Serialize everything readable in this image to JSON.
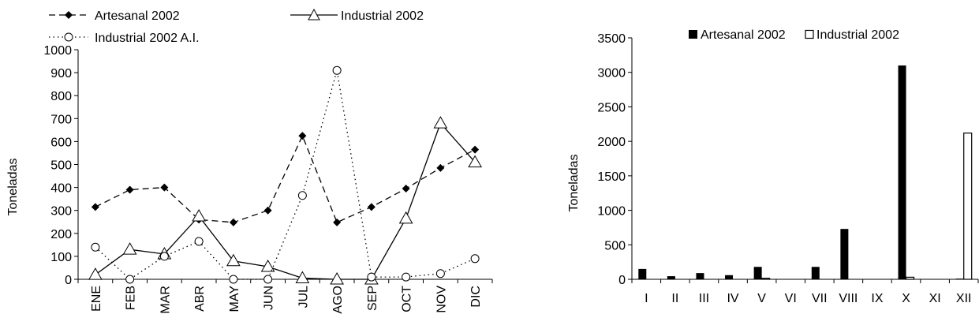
{
  "chart_data": [
    {
      "type": "line",
      "title": "",
      "xlabel": "",
      "ylabel": "Toneladas",
      "ylim": [
        0,
        1000
      ],
      "yticks": [
        0,
        100,
        200,
        300,
        400,
        500,
        600,
        700,
        800,
        900,
        1000
      ],
      "categories": [
        "ENE",
        "FEB",
        "MAR",
        "ABR",
        "MAY",
        "JUN",
        "JUL",
        "AGO",
        "SEP",
        "OCT",
        "NOV",
        "DIC"
      ],
      "legend_position": "top",
      "series": [
        {
          "name": "Artesanal 2002",
          "style": "dashed",
          "marker": "diamond-filled",
          "values": [
            315,
            390,
            400,
            260,
            248,
            300,
            625,
            248,
            315,
            395,
            485,
            565
          ]
        },
        {
          "name": "Industrial 2002",
          "style": "solid",
          "marker": "triangle-open",
          "values": [
            20,
            130,
            110,
            275,
            80,
            55,
            5,
            0,
            0,
            265,
            680,
            510
          ]
        },
        {
          "name": "Industrial 2002 A.I.",
          "style": "dotted",
          "marker": "circle-open",
          "values": [
            140,
            0,
            100,
            165,
            0,
            0,
            365,
            910,
            10,
            10,
            25,
            90
          ]
        }
      ]
    },
    {
      "type": "bar",
      "title": "",
      "xlabel": "",
      "ylabel": "Toneladas",
      "ylim": [
        0,
        3500
      ],
      "yticks": [
        0,
        500,
        1000,
        1500,
        2000,
        2500,
        3000,
        3500
      ],
      "categories": [
        "I",
        "II",
        "III",
        "IV",
        "V",
        "VI",
        "VII",
        "VIII",
        "IX",
        "X",
        "XI",
        "XII"
      ],
      "legend_position": "top",
      "series": [
        {
          "name": "Artesanal 2002",
          "fill": "#000000",
          "values": [
            150,
            45,
            90,
            60,
            180,
            0,
            180,
            730,
            0,
            3100,
            0,
            10
          ]
        },
        {
          "name": "Industrial 2002",
          "fill": "#ffffff",
          "values": [
            0,
            0,
            0,
            0,
            15,
            0,
            0,
            0,
            0,
            30,
            0,
            2120
          ]
        }
      ]
    }
  ]
}
